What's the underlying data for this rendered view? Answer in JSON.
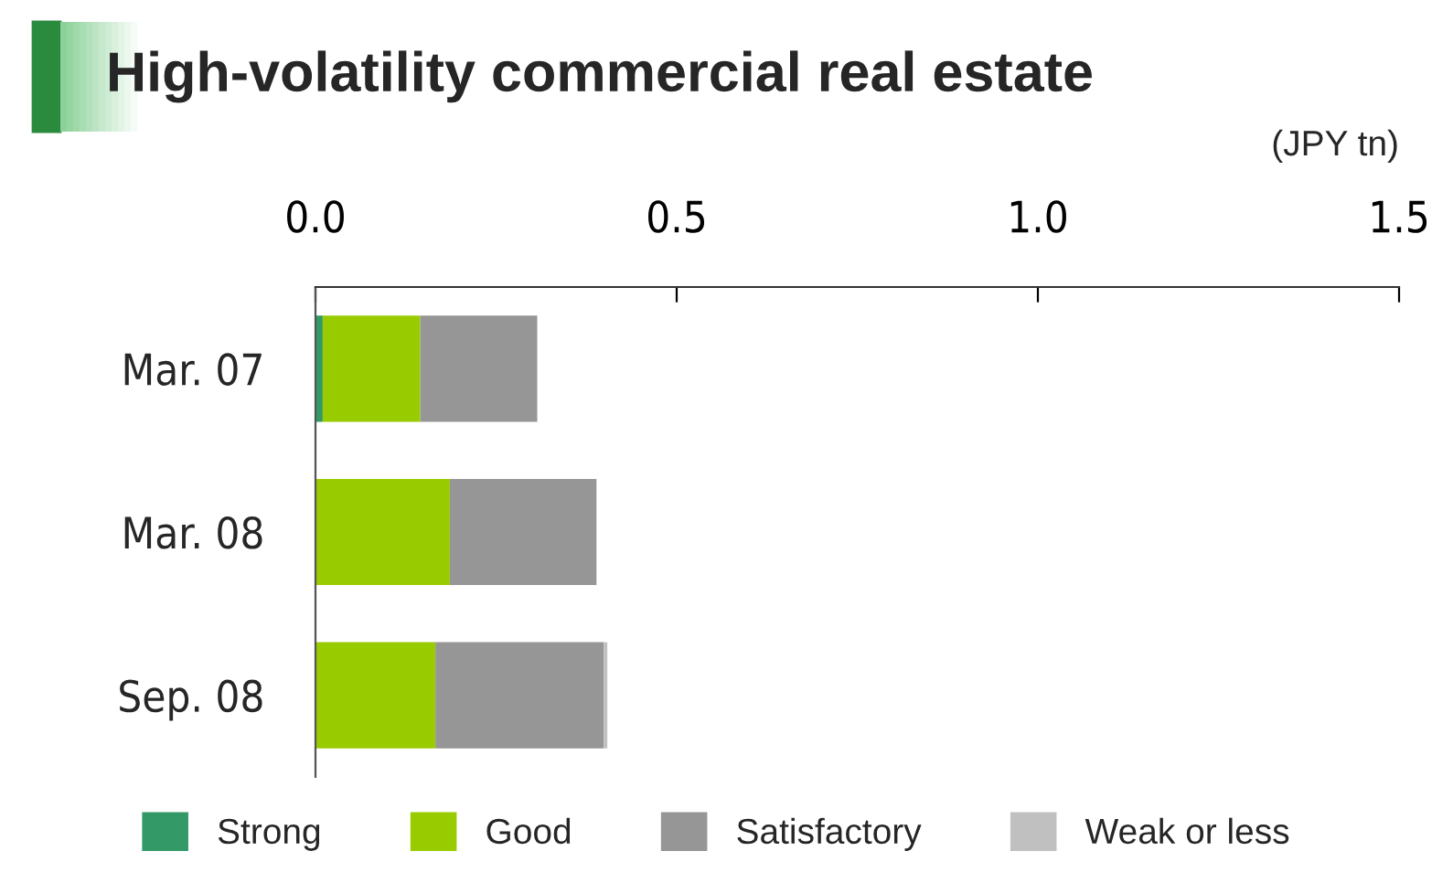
{
  "chart_data": {
    "type": "bar",
    "orientation": "horizontal",
    "stacked": true,
    "title": "High-volatility commercial real estate",
    "xlabel": "(JPY tn)",
    "categories": [
      "Mar. 07",
      "Mar. 08",
      "Sep. 08"
    ],
    "series": [
      {
        "name": "Strong",
        "color": "#339966",
        "values": [
          0.01,
          0,
          0
        ]
      },
      {
        "name": "Good",
        "color": "#99cc00",
        "values": [
          0.135,
          0.186,
          0.166
        ]
      },
      {
        "name": "Satisfactory",
        "color": "#969696",
        "values": [
          0.162,
          0.203,
          0.233
        ]
      },
      {
        "name": "Weak or less",
        "color": "#c0c0c0",
        "values": [
          0,
          0,
          0.005
        ]
      }
    ],
    "xlim": [
      0,
      1.5
    ],
    "xticks": [
      {
        "value": 0,
        "label": "0.0"
      },
      0.5,
      {
        "value": 1,
        "label": "1.0"
      },
      1.5
    ],
    "grid": false,
    "legend": "bottom"
  }
}
